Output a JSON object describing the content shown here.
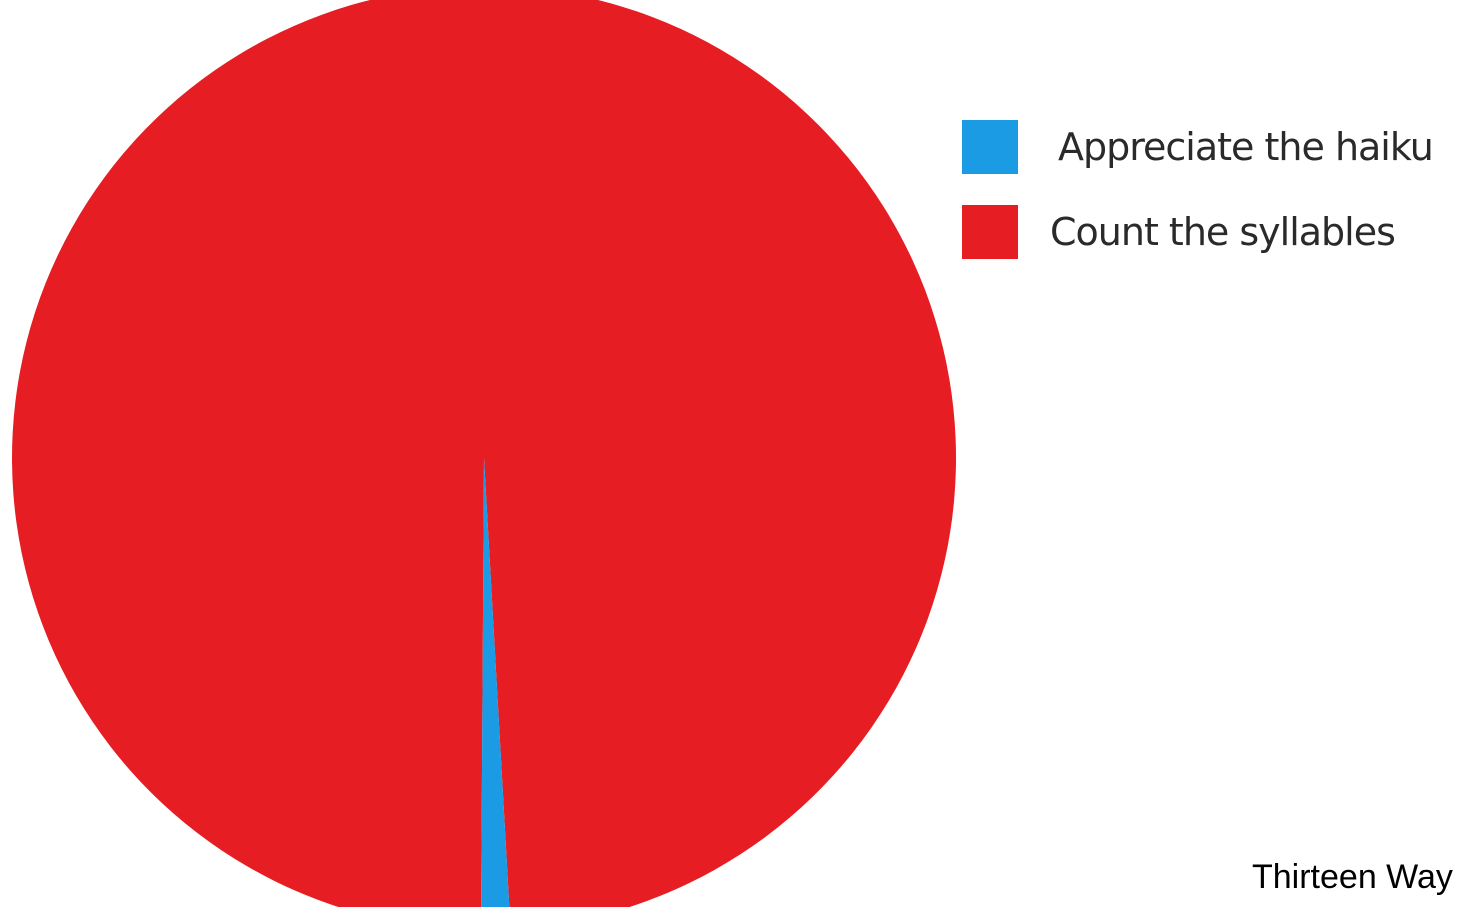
{
  "chart_data": {
    "type": "pie",
    "title": "",
    "slices": [
      {
        "label": "Appreciate the haiku",
        "value": 1,
        "color": "#1a9be3"
      },
      {
        "label": "Count the syllables",
        "value": 99,
        "color": "#e61d23"
      }
    ],
    "legend": {
      "position": "top-right",
      "entries": [
        {
          "label": "Appreciate the haiku",
          "color": "#1a9be3"
        },
        {
          "label": "Count the syllables",
          "color": "#e61d23"
        }
      ]
    }
  },
  "caption": "Thirteen Way"
}
